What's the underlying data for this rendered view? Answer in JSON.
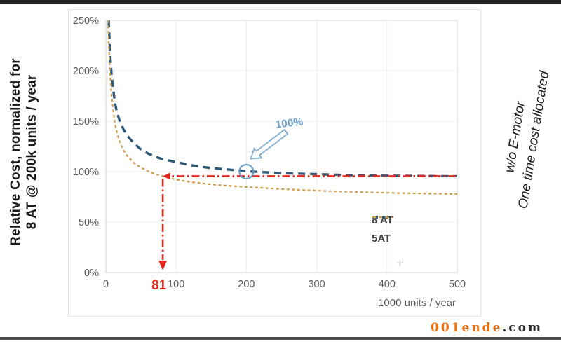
{
  "page": {
    "watermark": {
      "highlight": "001ende",
      "suffix": ".com"
    }
  },
  "chart": {
    "y_axis_title_line1": "Relative Cost, normalized for",
    "y_axis_title_line2": "8 AT @ 200k units / year",
    "x_axis_title": "1000 units / year",
    "side_note_line1": "w/o E-motor",
    "side_note_line2": "One time cost allocated",
    "legend": [
      {
        "label": "8 AT",
        "color": "#2e5a78",
        "dash": "10 7",
        "width": 3.4
      },
      {
        "label": "5AT",
        "color": "#cf9c4c",
        "dash": "4 3.5",
        "width": 2.2
      }
    ]
  },
  "chart_data": {
    "type": "line",
    "title": "",
    "xlabel": "1000 units / year",
    "ylabel": "Relative Cost, normalized for 8 AT @ 200k units / year",
    "xlim": [
      0,
      500
    ],
    "ylim": [
      0,
      250
    ],
    "x_ticks": [
      0,
      100,
      200,
      300,
      400,
      500
    ],
    "y_ticks": [
      0,
      50,
      100,
      150,
      200,
      250
    ],
    "y_tick_format": "percent",
    "grid": true,
    "legend_position": "lower right",
    "series": [
      {
        "name": "8 AT",
        "color": "#2e5a78",
        "style": "dashed",
        "points": [
          [
            4,
            250
          ],
          [
            5,
            233
          ],
          [
            6,
            217
          ],
          [
            8,
            197
          ],
          [
            10,
            184
          ],
          [
            13,
            168
          ],
          [
            16,
            158
          ],
          [
            20,
            150
          ],
          [
            25,
            142
          ],
          [
            30,
            136
          ],
          [
            40,
            128
          ],
          [
            50,
            122
          ],
          [
            60,
            118
          ],
          [
            70,
            115
          ],
          [
            80,
            112.5
          ],
          [
            100,
            109.5
          ],
          [
            120,
            106.5
          ],
          [
            150,
            103.5
          ],
          [
            175,
            102
          ],
          [
            200,
            100.5
          ],
          [
            250,
            98.5
          ],
          [
            300,
            97.5
          ],
          [
            350,
            96.5
          ],
          [
            400,
            96
          ],
          [
            450,
            95.7
          ],
          [
            500,
            95.5
          ]
        ]
      },
      {
        "name": "5AT",
        "color": "#cf9c4c",
        "style": "dotted",
        "points": [
          [
            3,
            250
          ],
          [
            4,
            229
          ],
          [
            5,
            212
          ],
          [
            6,
            198
          ],
          [
            8,
            177
          ],
          [
            10,
            163
          ],
          [
            13,
            147
          ],
          [
            16,
            138
          ],
          [
            20,
            129
          ],
          [
            25,
            121
          ],
          [
            30,
            116
          ],
          [
            40,
            108.5
          ],
          [
            50,
            104
          ],
          [
            60,
            100.5
          ],
          [
            70,
            97.8
          ],
          [
            81,
            95.5
          ],
          [
            100,
            92
          ],
          [
            120,
            89.8
          ],
          [
            150,
            87.3
          ],
          [
            175,
            86
          ],
          [
            200,
            84.8
          ],
          [
            250,
            82.8
          ],
          [
            300,
            81.2
          ],
          [
            350,
            80
          ],
          [
            400,
            79
          ],
          [
            450,
            78.3
          ],
          [
            500,
            77.8
          ]
        ]
      }
    ],
    "annotations": {
      "callout": {
        "label": "100%",
        "target_x": 200,
        "target_y": 100,
        "shape": "circle",
        "color": "#6aa0c6"
      },
      "marker": {
        "label": "81",
        "x": 81,
        "y": 95.5,
        "color": "#e02a1e"
      }
    }
  }
}
